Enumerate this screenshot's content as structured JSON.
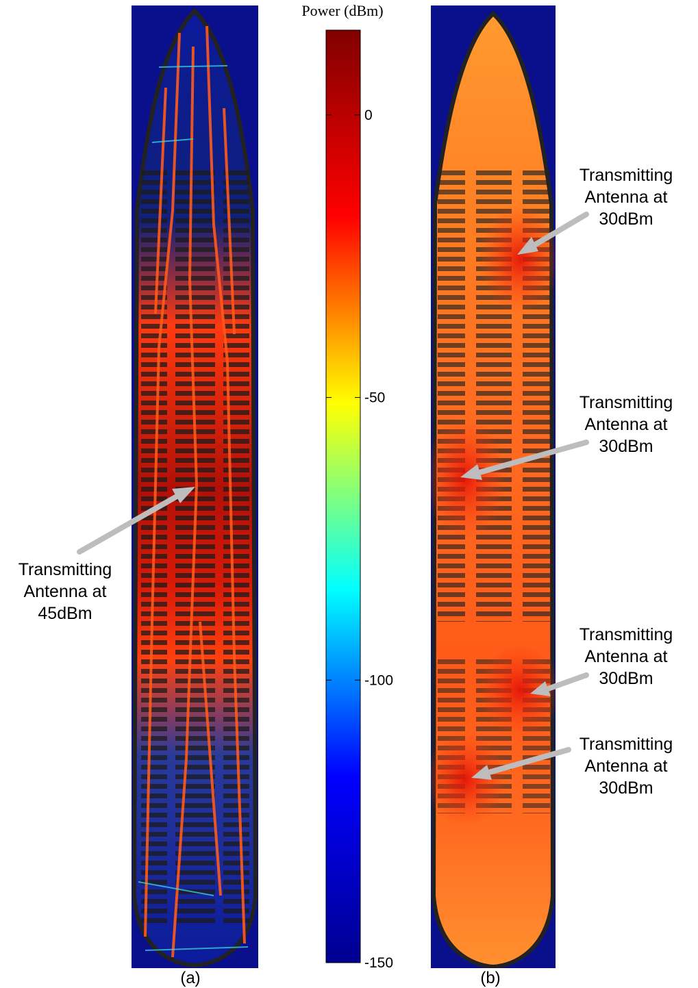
{
  "colorbar": {
    "title": "Power (dBm)",
    "ticks": [
      {
        "value": 0,
        "label": "0"
      },
      {
        "value": -50,
        "label": "-50"
      },
      {
        "value": -100,
        "label": "-100"
      },
      {
        "value": -150,
        "label": "-150"
      }
    ],
    "range": [
      -150,
      15
    ],
    "colormap": [
      "#00008f",
      "#0000ff",
      "#00ffff",
      "#ffff00",
      "#ff0000",
      "#800000"
    ]
  },
  "panels": [
    {
      "label": "(a)"
    },
    {
      "label": "(b)"
    }
  ],
  "annotations": [
    {
      "text": "Transmitting\nAntenna at\n45dBm"
    },
    {
      "text": "Transmitting\nAntenna at\n30dBm"
    },
    {
      "text": "Transmitting\nAntenna at\n30dBm"
    },
    {
      "text": "Transmitting\nAntenna at\n30dBm"
    },
    {
      "text": "Transmitting\nAntenna at\n30dBm"
    }
  ],
  "colors": {
    "background_cell": "#0a0f8c",
    "arrow": "#bdbdbd"
  }
}
